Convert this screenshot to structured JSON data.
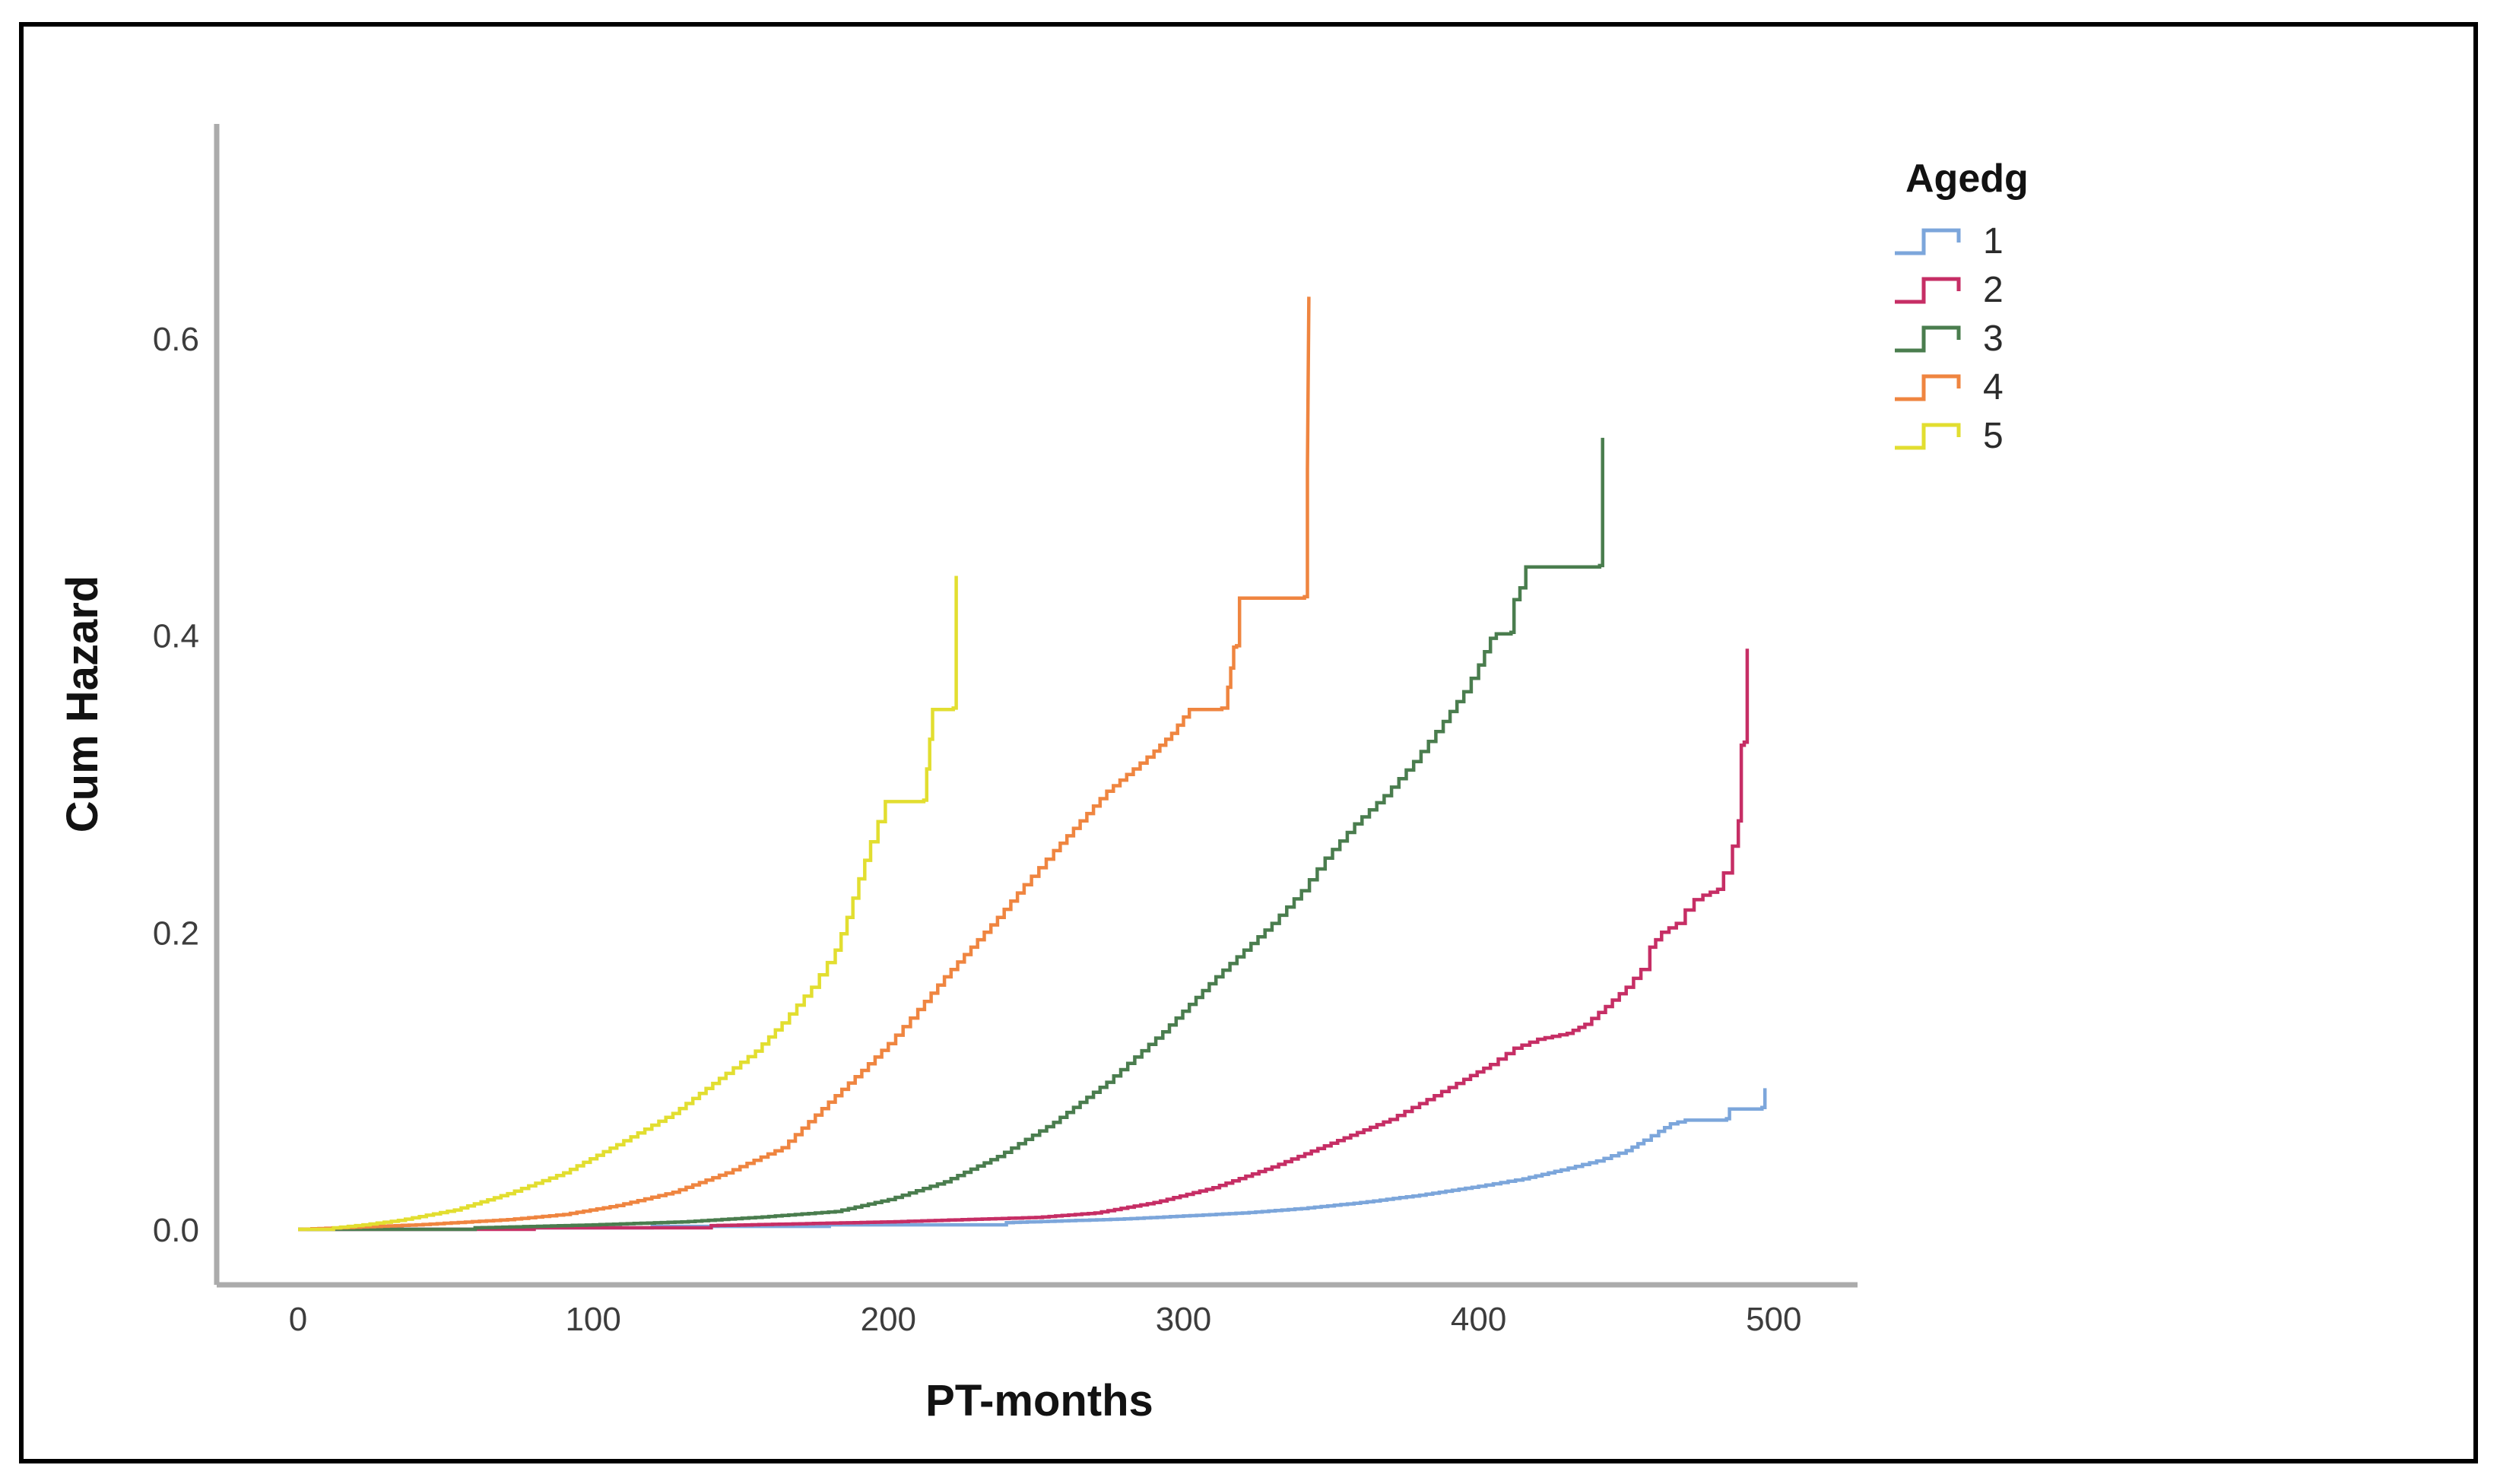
{
  "chart_data": {
    "type": "line",
    "variant": "step-cumulative-hazard",
    "title": "",
    "xlabel": "PT-months",
    "ylabel": "Cum Hazard",
    "legend_title": "Agedg",
    "legend_position": "right",
    "grid": false,
    "x_ticks": [
      "0",
      "100",
      "200",
      "300",
      "400",
      "500"
    ],
    "x_tick_values": [
      0,
      100,
      200,
      300,
      400,
      500
    ],
    "y_ticks": [
      "0.0",
      "0.2",
      "0.4",
      "0.6"
    ],
    "y_tick_values": [
      0,
      0.2,
      0.4,
      0.6
    ],
    "xlim": [
      -27.5,
      528
    ],
    "ylim": [
      -0.037,
      0.744
    ],
    "series": [
      {
        "name": "1",
        "color": "#7CA6DB",
        "points": [
          [
            0,
            0
          ],
          [
            60,
            0.001
          ],
          [
            120,
            0.002
          ],
          [
            180,
            0.003
          ],
          [
            240,
            0.0045
          ],
          [
            280,
            0.007
          ],
          [
            300,
            0.009
          ],
          [
            320,
            0.011
          ],
          [
            340,
            0.014
          ],
          [
            360,
            0.018
          ],
          [
            380,
            0.023
          ],
          [
            400,
            0.029
          ],
          [
            415,
            0.034
          ],
          [
            428,
            0.04
          ],
          [
            440,
            0.046
          ],
          [
            450,
            0.053
          ],
          [
            456,
            0.06
          ],
          [
            461,
            0.066
          ],
          [
            465,
            0.071
          ],
          [
            470,
            0.0735
          ],
          [
            484,
            0.0745
          ],
          [
            485,
            0.081
          ],
          [
            496,
            0.082
          ],
          [
            497,
            0.095
          ]
        ]
      },
      {
        "name": "2",
        "color": "#C62E65",
        "points": [
          [
            0,
            0
          ],
          [
            80,
            0.001
          ],
          [
            140,
            0.0025
          ],
          [
            200,
            0.005
          ],
          [
            250,
            0.008
          ],
          [
            270,
            0.011
          ],
          [
            290,
            0.018
          ],
          [
            310,
            0.028
          ],
          [
            330,
            0.042
          ],
          [
            350,
            0.058
          ],
          [
            370,
            0.074
          ],
          [
            385,
            0.09
          ],
          [
            395,
            0.101
          ],
          [
            404,
            0.111
          ],
          [
            412,
            0.122
          ],
          [
            420,
            0.128
          ],
          [
            430,
            0.132
          ],
          [
            436,
            0.138
          ],
          [
            443,
            0.15
          ],
          [
            450,
            0.163
          ],
          [
            455,
            0.175
          ],
          [
            458,
            0.19
          ],
          [
            462,
            0.2
          ],
          [
            467,
            0.206
          ],
          [
            470,
            0.215
          ],
          [
            473,
            0.222
          ],
          [
            476,
            0.225
          ],
          [
            481,
            0.229
          ],
          [
            483,
            0.24
          ],
          [
            486,
            0.258
          ],
          [
            488,
            0.275
          ],
          [
            489,
            0.326
          ],
          [
            490,
            0.328
          ],
          [
            491,
            0.391
          ]
        ]
      },
      {
        "name": "3",
        "color": "#4A7D4E",
        "points": [
          [
            0,
            0
          ],
          [
            60,
            0.001
          ],
          [
            100,
            0.003
          ],
          [
            130,
            0.005
          ],
          [
            155,
            0.008
          ],
          [
            182,
            0.012
          ],
          [
            200,
            0.02
          ],
          [
            219,
            0.032
          ],
          [
            237,
            0.049
          ],
          [
            256,
            0.072
          ],
          [
            274,
            0.099
          ],
          [
            293,
            0.133
          ],
          [
            311,
            0.17
          ],
          [
            330,
            0.206
          ],
          [
            340,
            0.228
          ],
          [
            348,
            0.25
          ],
          [
            358,
            0.273
          ],
          [
            368,
            0.292
          ],
          [
            378,
            0.315
          ],
          [
            388,
            0.342
          ],
          [
            395,
            0.362
          ],
          [
            400,
            0.38
          ],
          [
            404,
            0.398
          ],
          [
            406,
            0.401
          ],
          [
            411,
            0.402
          ],
          [
            412,
            0.424
          ],
          [
            414,
            0.432
          ],
          [
            416,
            0.446
          ],
          [
            441,
            0.447
          ],
          [
            442,
            0.533
          ]
        ]
      },
      {
        "name": "4",
        "color": "#EF8540",
        "points": [
          [
            0,
            0
          ],
          [
            40,
            0.003
          ],
          [
            71,
            0.0065
          ],
          [
            90,
            0.01
          ],
          [
            108,
            0.016
          ],
          [
            127,
            0.025
          ],
          [
            145,
            0.038
          ],
          [
            164,
            0.055
          ],
          [
            182,
            0.09
          ],
          [
            191,
            0.107
          ],
          [
            200,
            0.125
          ],
          [
            210,
            0.148
          ],
          [
            219,
            0.17
          ],
          [
            228,
            0.19
          ],
          [
            237,
            0.21
          ],
          [
            246,
            0.232
          ],
          [
            256,
            0.255
          ],
          [
            265,
            0.275
          ],
          [
            274,
            0.295
          ],
          [
            283,
            0.31
          ],
          [
            290,
            0.322
          ],
          [
            296,
            0.334
          ],
          [
            300,
            0.345
          ],
          [
            302,
            0.35
          ],
          [
            313,
            0.351
          ],
          [
            315,
            0.365
          ],
          [
            316,
            0.378
          ],
          [
            317,
            0.392
          ],
          [
            318,
            0.393
          ],
          [
            319,
            0.425
          ],
          [
            341,
            0.426
          ],
          [
            342,
            0.512
          ],
          [
            342.5,
            0.628
          ]
        ]
      },
      {
        "name": "5",
        "color": "#E2DE30",
        "points": [
          [
            0,
            0
          ],
          [
            12,
            0.001
          ],
          [
            22,
            0.003
          ],
          [
            34,
            0.006
          ],
          [
            53,
            0.013
          ],
          [
            71,
            0.024
          ],
          [
            90,
            0.038
          ],
          [
            108,
            0.057
          ],
          [
            127,
            0.078
          ],
          [
            145,
            0.105
          ],
          [
            155,
            0.12
          ],
          [
            164,
            0.139
          ],
          [
            174,
            0.163
          ],
          [
            182,
            0.188
          ],
          [
            186,
            0.21
          ],
          [
            190,
            0.236
          ],
          [
            194,
            0.261
          ],
          [
            199,
            0.288
          ],
          [
            212,
            0.289
          ],
          [
            213,
            0.31
          ],
          [
            214,
            0.33
          ],
          [
            215,
            0.35
          ],
          [
            222,
            0.351
          ],
          [
            223,
            0.44
          ]
        ]
      }
    ]
  },
  "colors": {
    "axis_line": "#ABABAB",
    "outer_border": "#000000",
    "tick_text": "#3d3d3d",
    "label_text": "#121212",
    "background": "#ffffff"
  }
}
